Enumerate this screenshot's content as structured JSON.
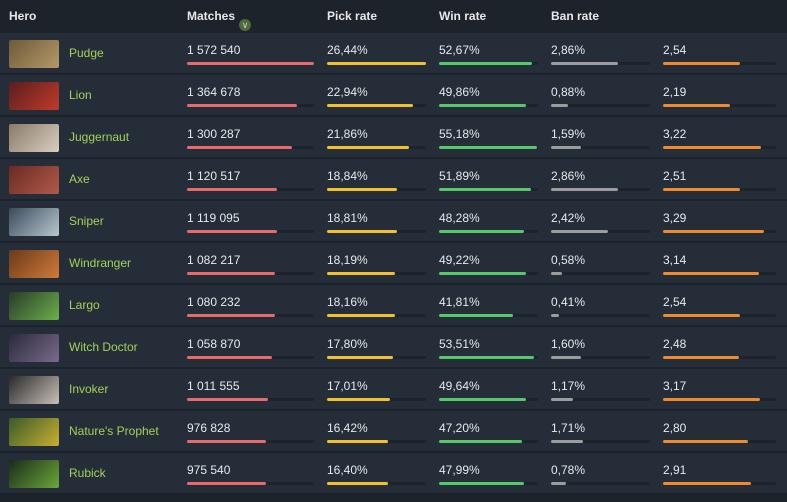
{
  "columns": {
    "hero": "Hero",
    "matches": "Matches",
    "pick_rate": "Pick rate",
    "win_rate": "Win rate",
    "ban_rate": "Ban rate"
  },
  "colors": {
    "matches_bar": "#e86a6a",
    "pick_bar": "#f3c229",
    "win_bar": "#55c96a",
    "ban_bar": "#9c9c9c",
    "kda_bar": "#f08a2c",
    "hero_name": "#a4d15a"
  },
  "rows": [
    {
      "hero": "Pudge",
      "matches": "1 572 540",
      "matches_frac": 1.0,
      "pick": "26,44%",
      "pick_frac": 1.0,
      "win": "52,67%",
      "win_frac": 0.94,
      "ban": "2,86%",
      "ban_frac": 0.68,
      "kda": "2,54",
      "kda_frac": 0.68,
      "avatar": [
        "#6b5a3a",
        "#b89868"
      ]
    },
    {
      "hero": "Lion",
      "matches": "1 364 678",
      "matches_frac": 0.87,
      "pick": "22,94%",
      "pick_frac": 0.87,
      "win": "49,86%",
      "win_frac": 0.88,
      "ban": "0,88%",
      "ban_frac": 0.17,
      "kda": "2,19",
      "kda_frac": 0.59,
      "avatar": [
        "#5a1e1e",
        "#c03a2a"
      ]
    },
    {
      "hero": "Juggernaut",
      "matches": "1 300 287",
      "matches_frac": 0.83,
      "pick": "21,86%",
      "pick_frac": 0.83,
      "win": "55,18%",
      "win_frac": 0.99,
      "ban": "1,59%",
      "ban_frac": 0.3,
      "kda": "3,22",
      "kda_frac": 0.87,
      "avatar": [
        "#8a7a6a",
        "#d8cfc0"
      ]
    },
    {
      "hero": "Axe",
      "matches": "1 120 517",
      "matches_frac": 0.71,
      "pick": "18,84%",
      "pick_frac": 0.71,
      "win": "51,89%",
      "win_frac": 0.93,
      "ban": "2,86%",
      "ban_frac": 0.68,
      "kda": "2,51",
      "kda_frac": 0.68,
      "avatar": [
        "#6a2a22",
        "#b05a4a"
      ]
    },
    {
      "hero": "Sniper",
      "matches": "1 119 095",
      "matches_frac": 0.71,
      "pick": "18,81%",
      "pick_frac": 0.71,
      "win": "48,28%",
      "win_frac": 0.86,
      "ban": "2,42%",
      "ban_frac": 0.58,
      "kda": "3,29",
      "kda_frac": 0.89,
      "avatar": [
        "#3a4a5a",
        "#b8c8d0"
      ]
    },
    {
      "hero": "Windranger",
      "matches": "1 082 217",
      "matches_frac": 0.69,
      "pick": "18,19%",
      "pick_frac": 0.69,
      "win": "49,22%",
      "win_frac": 0.88,
      "ban": "0,58%",
      "ban_frac": 0.11,
      "kda": "3,14",
      "kda_frac": 0.85,
      "avatar": [
        "#6a3a1a",
        "#d07a3a"
      ]
    },
    {
      "hero": "Largo",
      "matches": "1 080 232",
      "matches_frac": 0.69,
      "pick": "18,16%",
      "pick_frac": 0.69,
      "win": "41,81%",
      "win_frac": 0.75,
      "ban": "0,41%",
      "ban_frac": 0.08,
      "kda": "2,54",
      "kda_frac": 0.68,
      "avatar": [
        "#2a3a2a",
        "#6ab04a"
      ]
    },
    {
      "hero": "Witch Doctor",
      "matches": "1 058 870",
      "matches_frac": 0.67,
      "pick": "17,80%",
      "pick_frac": 0.67,
      "win": "53,51%",
      "win_frac": 0.96,
      "ban": "1,60%",
      "ban_frac": 0.3,
      "kda": "2,48",
      "kda_frac": 0.67,
      "avatar": [
        "#2a2a3a",
        "#7a6a8a"
      ]
    },
    {
      "hero": "Invoker",
      "matches": "1 011 555",
      "matches_frac": 0.64,
      "pick": "17,01%",
      "pick_frac": 0.64,
      "win": "49,64%",
      "win_frac": 0.88,
      "ban": "1,17%",
      "ban_frac": 0.22,
      "kda": "3,17",
      "kda_frac": 0.86,
      "avatar": [
        "#2a2a2a",
        "#c8c0b8"
      ]
    },
    {
      "hero": "Nature's Prophet",
      "matches": "976 828",
      "matches_frac": 0.62,
      "pick": "16,42%",
      "pick_frac": 0.62,
      "win": "47,20%",
      "win_frac": 0.84,
      "ban": "1,71%",
      "ban_frac": 0.32,
      "kda": "2,80",
      "kda_frac": 0.75,
      "avatar": [
        "#3a5a2a",
        "#c8b030"
      ]
    },
    {
      "hero": "Rubick",
      "matches": "975 540",
      "matches_frac": 0.62,
      "pick": "16,40%",
      "pick_frac": 0.62,
      "win": "47,99%",
      "win_frac": 0.86,
      "ban": "0,78%",
      "ban_frac": 0.15,
      "kda": "2,91",
      "kda_frac": 0.78,
      "avatar": [
        "#1a2a1a",
        "#6aa83a"
      ]
    }
  ]
}
